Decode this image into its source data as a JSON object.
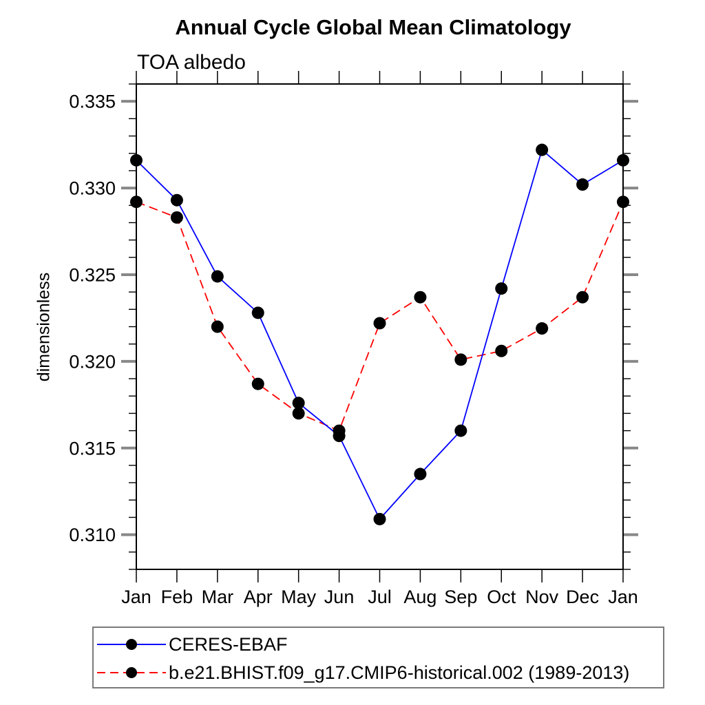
{
  "chart_data": {
    "type": "line",
    "title": "Annual Cycle Global Mean Climatology",
    "subtitle": "TOA albedo",
    "ylabel": "dimensionless",
    "xlabel": "",
    "categories": [
      "Jan",
      "Feb",
      "Mar",
      "Apr",
      "May",
      "Jun",
      "Jul",
      "Aug",
      "Sep",
      "Oct",
      "Nov",
      "Dec",
      "Jan"
    ],
    "series": [
      {
        "name": "CERES-EBAF",
        "color": "#0000ff",
        "line_style": "solid",
        "marker": "filled-circle",
        "marker_color": "#000000",
        "values": [
          0.3316,
          0.3293,
          0.3249,
          0.3228,
          0.3176,
          0.3157,
          0.3109,
          0.3135,
          0.316,
          0.3242,
          0.3322,
          0.3302,
          0.3316
        ]
      },
      {
        "name": "b.e21.BHIST.f09_g17.CMIP6-historical.002 (1989-2013)",
        "color": "#ff0000",
        "line_style": "dashed",
        "marker": "filled-circle",
        "marker_color": "#000000",
        "values": [
          0.3292,
          0.3283,
          0.322,
          0.3187,
          0.317,
          0.316,
          0.3222,
          0.3237,
          0.3201,
          0.3206,
          0.3219,
          0.3237,
          0.3292
        ]
      }
    ],
    "ylim": [
      0.308,
      0.336
    ],
    "ytick_major_step": 0.005,
    "ytick_minor_step": 0.001,
    "ytick_labels": [
      "0.310",
      "0.315",
      "0.320",
      "0.325",
      "0.330",
      "0.335"
    ],
    "yticks_major": [
      0.31,
      0.315,
      0.32,
      0.325,
      0.33,
      0.335
    ],
    "grid": false,
    "legend_position": "bottom-left",
    "frame_color": "#000000",
    "major_tick_color": "#888888",
    "minor_tick_color": "#000000"
  }
}
